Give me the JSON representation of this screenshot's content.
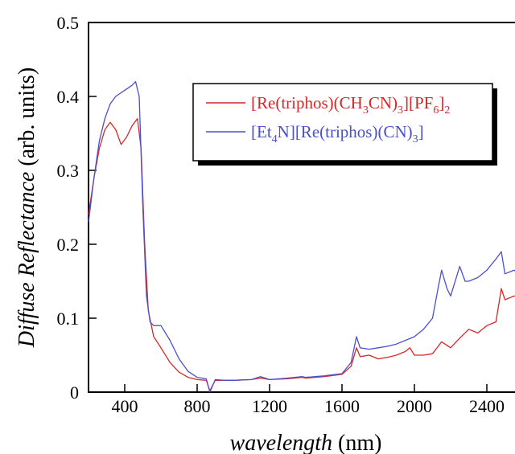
{
  "chart_data": {
    "type": "line",
    "title": "",
    "xlabel": "wavelength (nm)",
    "xlabel_italic_part": "wavelength",
    "xlabel_unit_part": " (nm)",
    "ylabel": "Diffuse Reflectance (arb. units)",
    "ylabel_italic_part": "Diffuse Reflectance",
    "ylabel_unit_part": " (arb. units)",
    "xlim": [
      200,
      2600
    ],
    "ylim": [
      0,
      0.5
    ],
    "x_ticks": [
      400,
      800,
      1200,
      1600,
      2000,
      2400
    ],
    "y_ticks": [
      0,
      0.1,
      0.2,
      0.3,
      0.4,
      0.5
    ],
    "y_tick_labels": [
      "0",
      "0.1",
      "0.2",
      "0.3",
      "0.4",
      "0.5"
    ],
    "grid": false,
    "legend_position": "top-right",
    "series": [
      {
        "name": "[Re(triphos)(CH3CN)3][PF6]2",
        "color": "#d62728",
        "x": [
          200,
          230,
          260,
          290,
          320,
          350,
          380,
          410,
          440,
          470,
          490,
          510,
          530,
          560,
          600,
          650,
          700,
          750,
          800,
          850,
          870,
          900,
          950,
          1000,
          1100,
          1150,
          1200,
          1300,
          1380,
          1400,
          1500,
          1600,
          1650,
          1680,
          1700,
          1750,
          1800,
          1850,
          1900,
          1950,
          1975,
          2000,
          2050,
          2100,
          2150,
          2200,
          2250,
          2300,
          2350,
          2400,
          2450,
          2480,
          2500,
          2550,
          2600
        ],
        "y": [
          0.24,
          0.29,
          0.33,
          0.355,
          0.365,
          0.355,
          0.335,
          0.345,
          0.36,
          0.37,
          0.33,
          0.2,
          0.11,
          0.075,
          0.06,
          0.04,
          0.027,
          0.02,
          0.017,
          0.016,
          0.002,
          0.016,
          0.016,
          0.016,
          0.017,
          0.019,
          0.017,
          0.018,
          0.02,
          0.019,
          0.021,
          0.024,
          0.035,
          0.06,
          0.048,
          0.05,
          0.045,
          0.047,
          0.05,
          0.055,
          0.06,
          0.05,
          0.05,
          0.052,
          0.068,
          0.06,
          0.073,
          0.085,
          0.08,
          0.09,
          0.095,
          0.14,
          0.125,
          0.13,
          0.128
        ]
      },
      {
        "name": "[Et4N][Re(triphos)(CN)3]",
        "color": "#4a50c8",
        "x": [
          200,
          230,
          260,
          290,
          320,
          350,
          380,
          410,
          440,
          460,
          480,
          500,
          520,
          540,
          560,
          600,
          650,
          700,
          750,
          800,
          850,
          870,
          900,
          950,
          1000,
          1100,
          1150,
          1200,
          1300,
          1380,
          1400,
          1500,
          1600,
          1650,
          1680,
          1700,
          1750,
          1800,
          1850,
          1900,
          1950,
          2000,
          2050,
          2100,
          2130,
          2150,
          2180,
          2200,
          2250,
          2280,
          2300,
          2350,
          2400,
          2450,
          2480,
          2500,
          2550,
          2600
        ],
        "y": [
          0.23,
          0.29,
          0.34,
          0.37,
          0.39,
          0.4,
          0.405,
          0.41,
          0.415,
          0.42,
          0.4,
          0.25,
          0.13,
          0.095,
          0.09,
          0.09,
          0.07,
          0.045,
          0.028,
          0.02,
          0.018,
          0.0,
          0.017,
          0.016,
          0.016,
          0.017,
          0.021,
          0.017,
          0.019,
          0.021,
          0.02,
          0.022,
          0.025,
          0.04,
          0.075,
          0.06,
          0.058,
          0.06,
          0.062,
          0.065,
          0.07,
          0.075,
          0.085,
          0.1,
          0.14,
          0.165,
          0.14,
          0.13,
          0.17,
          0.15,
          0.15,
          0.155,
          0.165,
          0.18,
          0.19,
          0.16,
          0.165,
          0.155
        ]
      }
    ]
  },
  "legend": {
    "entry1": {
      "pre": "[Re(triphos)(CH",
      "sub1": "3",
      "mid": "CN)",
      "sub2": "3",
      "mid2": "][PF",
      "sub3": "6",
      "mid3": "]",
      "sub4": "2"
    },
    "entry2": {
      "pre": "[Et",
      "sub1": "4",
      "mid": "N][Re(triphos)(CN)",
      "sub2": "3",
      "mid2": "]"
    }
  }
}
